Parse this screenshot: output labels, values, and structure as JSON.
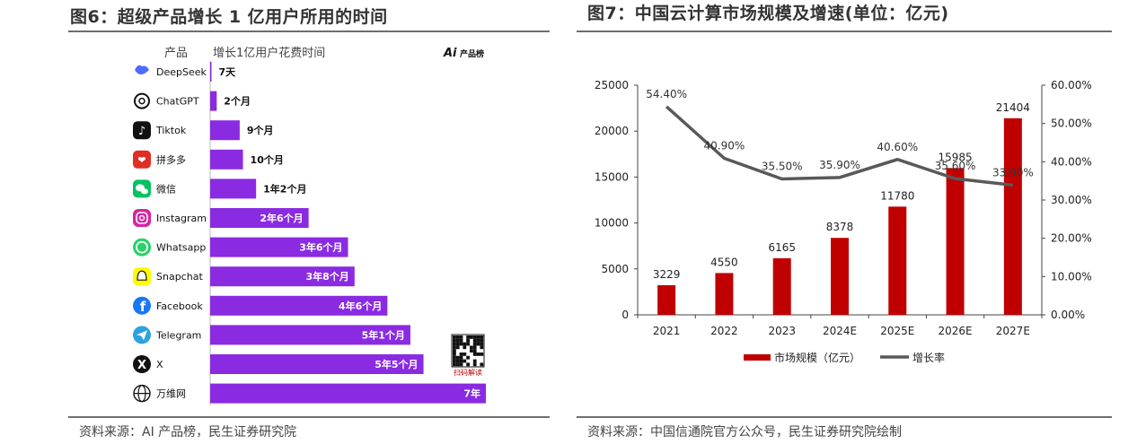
{
  "left": {
    "title": "图6：超级产品增长 1 亿用户所用的时间",
    "source": "资料来源：AI 产品榜，民生证券研究院",
    "logo_text": "产品榜",
    "qr_caption": "扫码解读",
    "chart_data": {
      "type": "bar",
      "orientation": "horizontal",
      "column_headers": [
        "产品",
        "增长1亿用户花费时间"
      ],
      "categories": [
        "DeepSeek",
        "ChatGPT",
        "Tiktok",
        "拼多多",
        "微信",
        "Instagram",
        "Whatsapp",
        "Snapchat",
        "Facebook",
        "Telegram",
        "X",
        "万维网"
      ],
      "values_months": [
        0.23,
        2,
        9,
        10,
        14,
        30,
        42,
        44,
        54,
        61,
        65,
        84
      ],
      "value_labels": [
        "7天",
        "2个月",
        "9个月",
        "10个月",
        "1年2个月",
        "2年6个月",
        "3年6个月",
        "3年8个月",
        "4年6个月",
        "5年1个月",
        "5年5个月",
        "7年"
      ],
      "bar_color": "#8a2be2",
      "icons": [
        "deepseek-whale-icon",
        "chatgpt-icon",
        "tiktok-icon",
        "pinduoduo-icon",
        "wechat-icon",
        "instagram-icon",
        "whatsapp-icon",
        "snapchat-icon",
        "facebook-icon",
        "telegram-icon",
        "x-icon",
        "globe-icon"
      ]
    }
  },
  "right": {
    "title": "图7：中国云计算市场规模及增速(单位：亿元)",
    "source": "资料来源：中国信通院官方公众号，民生证券研究院绘制",
    "chart_data": {
      "type": "bar+line",
      "categories": [
        "2021",
        "2022",
        "2023",
        "2024E",
        "2025E",
        "2026E",
        "2027E"
      ],
      "series": [
        {
          "name": "市场规模（亿元）",
          "type": "bar",
          "axis": "left",
          "color": "#c00000",
          "values": [
            3229,
            4550,
            6165,
            8378,
            11780,
            15985,
            21404
          ],
          "labels": [
            "3229",
            "4550",
            "6165",
            "8378",
            "11780",
            "15985",
            "21404"
          ]
        },
        {
          "name": "增长率",
          "type": "line",
          "axis": "right",
          "color": "#595959",
          "values": [
            54.4,
            40.9,
            35.5,
            35.9,
            40.6,
            35.6,
            33.9
          ],
          "labels": [
            "54.40%",
            "40.90%",
            "35.50%",
            "35.90%",
            "40.60%",
            "35.60%",
            "33.90%"
          ]
        }
      ],
      "y_left": {
        "min": 0,
        "max": 25000,
        "ticks": [
          "0",
          "5000",
          "10000",
          "15000",
          "20000",
          "25000"
        ]
      },
      "y_right": {
        "min": 0,
        "max": 60,
        "ticks": [
          "0.00%",
          "10.00%",
          "20.00%",
          "30.00%",
          "40.00%",
          "50.00%",
          "60.00%"
        ]
      },
      "legend_position": "bottom"
    }
  }
}
